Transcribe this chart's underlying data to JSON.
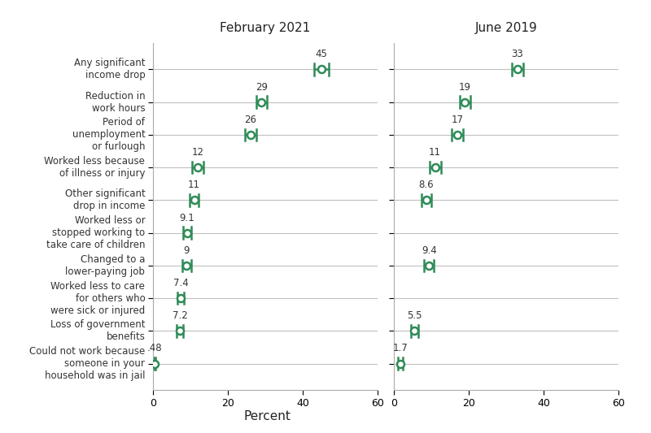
{
  "categories": [
    "Any significant\nincome drop",
    "Reduction in\nwork hours",
    "Period of\nunemployment\nor furlough",
    "Worked less because\nof illness or injury",
    "Other significant\ndrop in income",
    "Worked less or\nstopped working to\ntake care of children",
    "Changed to a\nlower-paying job",
    "Worked less to care\nfor others who\nwere sick or injured",
    "Loss of government\nbenefits",
    "Could not work because\nsomeone in your\nhousehold was in jail"
  ],
  "feb2021": {
    "values": [
      45,
      29,
      26,
      12,
      11,
      9.1,
      9,
      7.4,
      7.2,
      0.48
    ],
    "ci_low": [
      43,
      27.5,
      24.5,
      10.5,
      9.8,
      8.0,
      7.8,
      6.5,
      6.3,
      0.22
    ],
    "ci_high": [
      47,
      30.5,
      27.5,
      13.5,
      12.2,
      10.2,
      10.2,
      8.3,
      8.1,
      0.74
    ],
    "labels": [
      "45",
      "29",
      "26",
      "12",
      "11",
      "9.1",
      "9",
      "7.4",
      "7.2",
      ".48"
    ]
  },
  "jun2019": {
    "values": [
      33,
      19,
      17,
      11,
      8.6,
      null,
      9.4,
      null,
      5.5,
      1.7
    ],
    "ci_low": [
      31.5,
      17.5,
      15.5,
      9.5,
      7.3,
      null,
      8.1,
      null,
      4.5,
      1.1
    ],
    "ci_high": [
      34.5,
      20.5,
      18.5,
      12.5,
      9.9,
      null,
      10.7,
      null,
      6.5,
      2.3
    ],
    "labels": [
      "33",
      "19",
      "17",
      "11",
      "8.6",
      "",
      "9.4",
      "",
      "5.5",
      "1.7"
    ]
  },
  "color": "#2e8b57",
  "line_color": "#c0c0c0",
  "title_feb": "February 2021",
  "title_jun": "June 2019",
  "xlabel": "Percent",
  "xlim": [
    0,
    60
  ],
  "xticks": [
    0,
    20,
    40,
    60
  ]
}
